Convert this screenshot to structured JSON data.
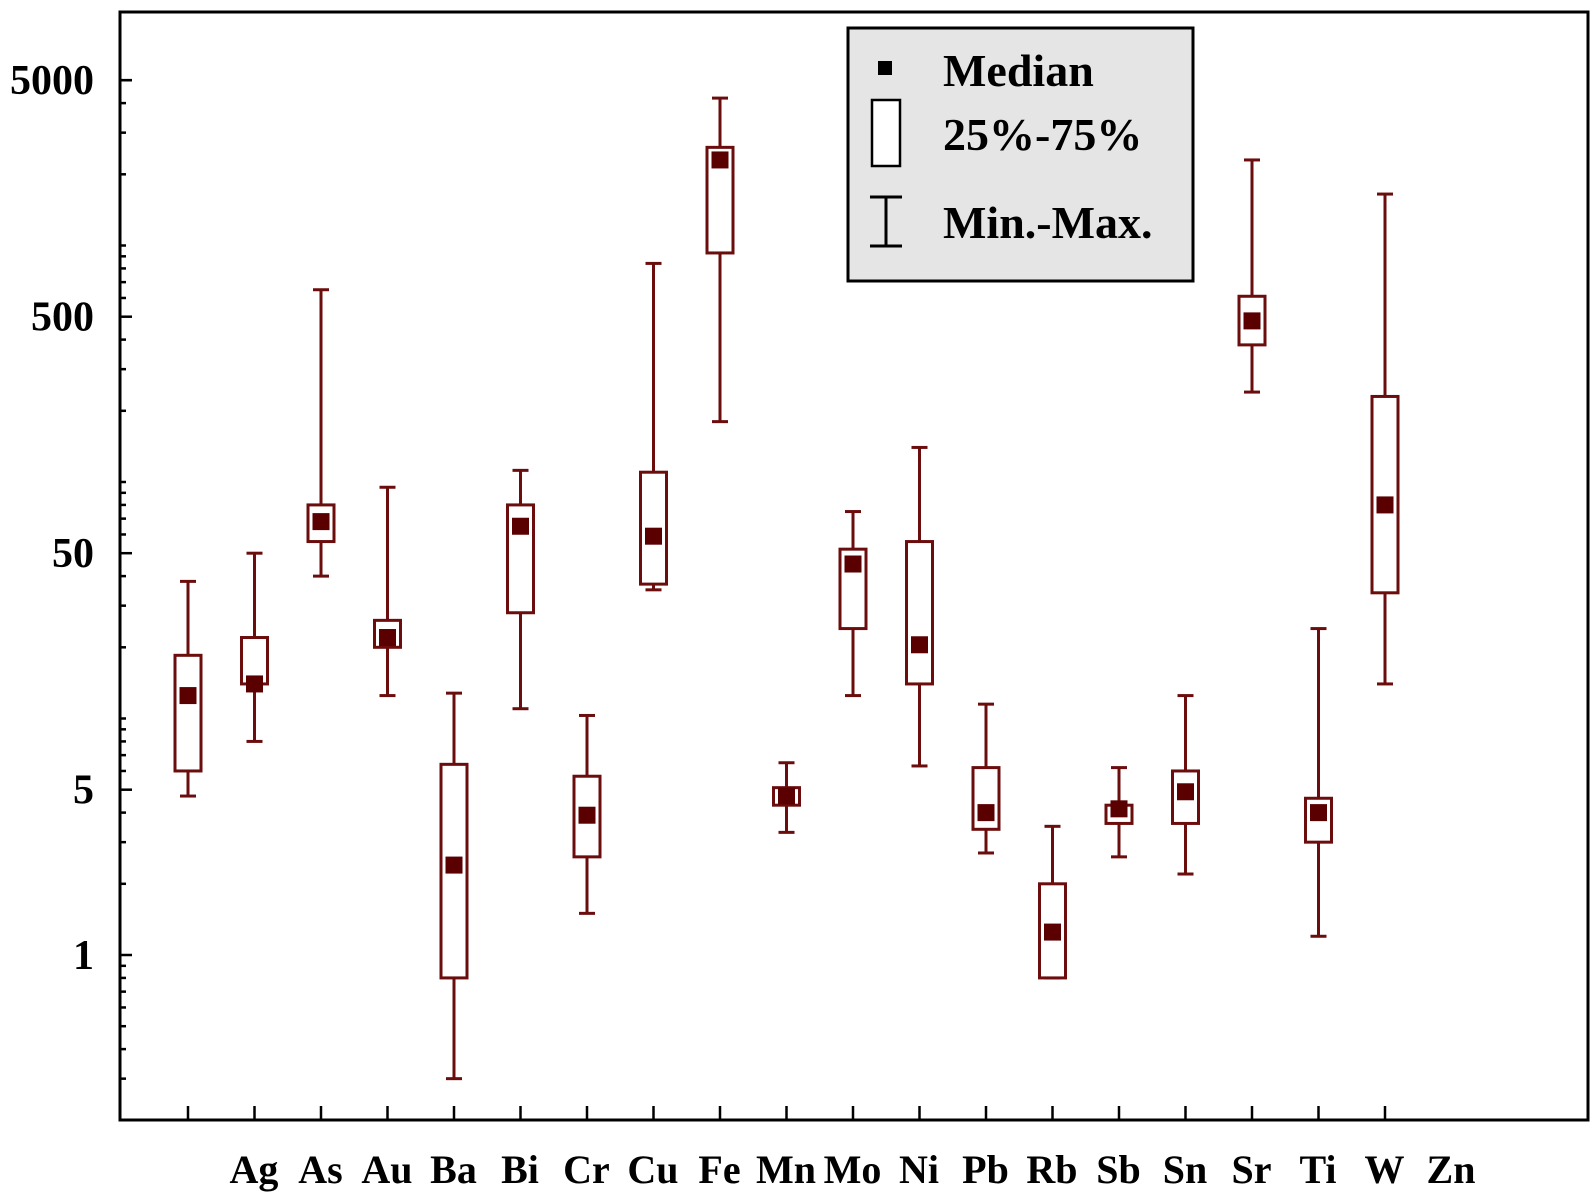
{
  "chart_data": {
    "type": "boxplot",
    "title": "",
    "xlabel": "",
    "ylabel": "",
    "y_scale": "log",
    "ylim": [
      0.27,
      5000
    ],
    "y_tick_labels": [
      "5000",
      "500",
      "50",
      "5",
      "1"
    ],
    "y_tick_values": [
      5000,
      500,
      50,
      5,
      1
    ],
    "categories": [
      "Ag",
      "As",
      "Au",
      "Ba",
      "Bi",
      "Cr",
      "Cu",
      "Fe",
      "Mn",
      "Mo",
      "Ni",
      "Pb",
      "Rb",
      "Sb",
      "Sn",
      "Sr",
      "Ti",
      "W",
      "Zn"
    ],
    "boxes": [
      {
        "min": 4.7,
        "q1": 6.0,
        "median": 12.5,
        "q3": 18.5,
        "max": 38
      },
      {
        "min": 8.0,
        "q1": 14.0,
        "median": 14.0,
        "q3": 22.0,
        "max": 50
      },
      {
        "min": 40,
        "q1": 56,
        "median": 68,
        "q3": 80,
        "max": 650
      },
      {
        "min": 12.5,
        "q1": 20,
        "median": 22,
        "q3": 26,
        "max": 95
      },
      {
        "min": 0.3,
        "q1": 0.8,
        "median": 2.4,
        "q3": 6.4,
        "max": 12.8
      },
      {
        "min": 11,
        "q1": 28,
        "median": 65,
        "q3": 80,
        "max": 112
      },
      {
        "min": 1.5,
        "q1": 2.6,
        "median": 3.9,
        "q3": 5.7,
        "max": 10.3
      },
      {
        "min": 35,
        "q1": 37,
        "median": 59,
        "q3": 110,
        "max": 840
      },
      {
        "min": 180,
        "q1": 930,
        "median": 2300,
        "q3": 2600,
        "max": 4200
      },
      {
        "min": 3.3,
        "q1": 4.3,
        "median": 4.7,
        "q3": 5.1,
        "max": 6.5
      },
      {
        "min": 12.5,
        "q1": 24,
        "median": 45,
        "q3": 52,
        "max": 75
      },
      {
        "min": 6.3,
        "q1": 14,
        "median": 20.5,
        "q3": 56,
        "max": 140
      },
      {
        "min": 2.7,
        "q1": 3.4,
        "median": 4.0,
        "q3": 6.2,
        "max": 11.5
      },
      {
        "min": 0.8,
        "q1": 0.8,
        "median": 1.25,
        "q3": 2.0,
        "max": 3.5
      },
      {
        "min": 2.6,
        "q1": 3.6,
        "median": 4.15,
        "q3": 4.3,
        "max": 6.2
      },
      {
        "min": 2.2,
        "q1": 3.6,
        "median": 4.9,
        "q3": 6.0,
        "max": 12.5
      },
      {
        "min": 240,
        "q1": 380,
        "median": 480,
        "q3": 610,
        "max": 2300
      },
      {
        "min": 1.2,
        "q1": 3.0,
        "median": 4.0,
        "q3": 4.6,
        "max": 24
      },
      {
        "min": 14,
        "q1": 34,
        "median": 80,
        "q3": 230,
        "max": 1650
      }
    ],
    "legend": {
      "placement": "top-center",
      "entries": [
        "Median",
        "25%-75%",
        "Min.-Max."
      ]
    },
    "colors": {
      "series": "#6b0d0d",
      "median_marker": "#5a0000",
      "axis": "#000000",
      "legend_bg": "#e5e5e5"
    },
    "grid": false
  }
}
